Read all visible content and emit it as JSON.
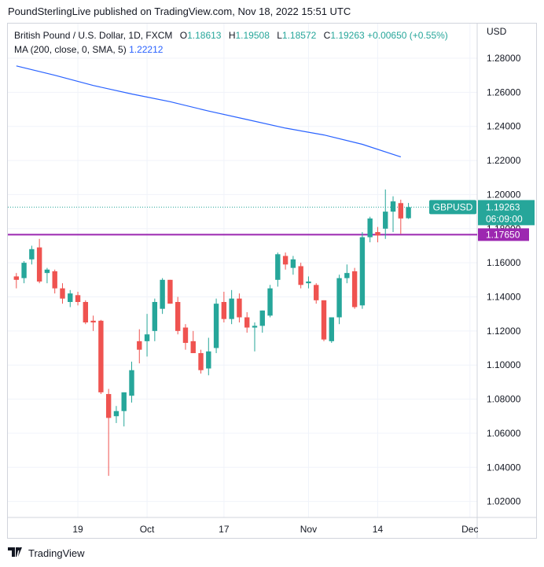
{
  "header": {
    "text": "PoundSterlingLive published on TradingView.com, Nov 18, 2022 15:51 UTC"
  },
  "legend": {
    "symbol": "British Pound / U.S. Dollar, 1D, FXCM",
    "o_label": "O",
    "o": "1.18613",
    "h_label": "H",
    "h": "1.19508",
    "l_label": "L",
    "l": "1.18572",
    "c_label": "C",
    "c": "1.19263",
    "change": "+0.00650 (+0.55%)",
    "ma_label": "MA (200, close, 0, SMA, 5)",
    "ma_value": "1.22212"
  },
  "currency": "USD",
  "price_tag": {
    "symbol": "GBPUSD",
    "price": "1.19263",
    "countdown": "06:09:00"
  },
  "level_tag": {
    "price": "1.17650"
  },
  "footer": {
    "brand": "TradingView"
  },
  "colors": {
    "up": "#26a69a",
    "down": "#ef5350",
    "ma": "#2962ff",
    "level": "#9c27b0",
    "price_line": "#26a69a"
  },
  "chart_data": {
    "type": "candlestick",
    "y_ticks": [
      "1.28000",
      "1.26000",
      "1.24000",
      "1.22000",
      "1.20000",
      "1.18000",
      "1.16000",
      "1.14000",
      "1.12000",
      "1.10000",
      "1.08000",
      "1.06000",
      "1.04000",
      "1.02000"
    ],
    "x_ticks": [
      {
        "label": "19",
        "index": 8
      },
      {
        "label": "Oct",
        "index": 17
      },
      {
        "label": "17",
        "index": 27
      },
      {
        "label": "Nov",
        "index": 38
      },
      {
        "label": "14",
        "index": 47
      },
      {
        "label": "Dec",
        "index": 59
      }
    ],
    "ylim": [
      1.0106,
      1.3003
    ],
    "horizontal_level": 1.1765,
    "last_price": 1.19263,
    "ma_line": [
      [
        0,
        1.2755
      ],
      [
        5,
        1.27
      ],
      [
        10,
        1.264
      ],
      [
        15,
        1.259
      ],
      [
        20,
        1.2545
      ],
      [
        25,
        1.249
      ],
      [
        30,
        1.244
      ],
      [
        35,
        1.239
      ],
      [
        40,
        1.235
      ],
      [
        45,
        1.2295
      ],
      [
        50,
        1.2221
      ]
    ],
    "candles": [
      [
        1.152,
        1.154,
        1.145,
        1.15
      ],
      [
        1.151,
        1.161,
        1.148,
        1.16
      ],
      [
        1.162,
        1.17,
        1.159,
        1.168
      ],
      [
        1.169,
        1.174,
        1.148,
        1.149
      ],
      [
        1.154,
        1.157,
        1.148,
        1.156
      ],
      [
        1.155,
        1.156,
        1.142,
        1.145
      ],
      [
        1.145,
        1.148,
        1.136,
        1.139
      ],
      [
        1.137,
        1.144,
        1.134,
        1.142
      ],
      [
        1.141,
        1.143,
        1.135,
        1.137
      ],
      [
        1.137,
        1.138,
        1.124,
        1.125
      ],
      [
        1.126,
        1.129,
        1.12,
        1.125
      ],
      [
        1.126,
        1.1265,
        1.083,
        1.084
      ],
      [
        1.083,
        1.086,
        1.035,
        1.069
      ],
      [
        1.07,
        1.076,
        1.066,
        1.073
      ],
      [
        1.073,
        1.084,
        1.064,
        1.084
      ],
      [
        1.082,
        1.102,
        1.078,
        1.097
      ],
      [
        1.114,
        1.121,
        1.101,
        1.109
      ],
      [
        1.114,
        1.13,
        1.105,
        1.118
      ],
      [
        1.12,
        1.139,
        1.114,
        1.137
      ],
      [
        1.133,
        1.151,
        1.13,
        1.15
      ],
      [
        1.15,
        1.15,
        1.136,
        1.136
      ],
      [
        1.137,
        1.14,
        1.118,
        1.12
      ],
      [
        1.122,
        1.124,
        1.109,
        1.113
      ],
      [
        1.114,
        1.12,
        1.107,
        1.107
      ],
      [
        1.107,
        1.109,
        1.095,
        1.097
      ],
      [
        1.098,
        1.116,
        1.094,
        1.108
      ],
      [
        1.11,
        1.139,
        1.107,
        1.136
      ],
      [
        1.137,
        1.143,
        1.125,
        1.127
      ],
      [
        1.127,
        1.144,
        1.124,
        1.139
      ],
      [
        1.139,
        1.142,
        1.125,
        1.128
      ],
      [
        1.128,
        1.131,
        1.119,
        1.122
      ],
      [
        1.122,
        1.125,
        1.108,
        1.123
      ],
      [
        1.123,
        1.132,
        1.119,
        1.132
      ],
      [
        1.129,
        1.147,
        1.128,
        1.145
      ],
      [
        1.15,
        1.166,
        1.146,
        1.165
      ],
      [
        1.164,
        1.166,
        1.156,
        1.159
      ],
      [
        1.157,
        1.164,
        1.153,
        1.162
      ],
      [
        1.158,
        1.16,
        1.145,
        1.147
      ],
      [
        1.148,
        1.152,
        1.145,
        1.149
      ],
      [
        1.147,
        1.148,
        1.136,
        1.138
      ],
      [
        1.138,
        1.138,
        1.114,
        1.115
      ],
      [
        1.114,
        1.128,
        1.113,
        1.128
      ],
      [
        1.128,
        1.153,
        1.124,
        1.151
      ],
      [
        1.151,
        1.159,
        1.148,
        1.154
      ],
      [
        1.155,
        1.157,
        1.133,
        1.134
      ],
      [
        1.135,
        1.178,
        1.133,
        1.175
      ],
      [
        1.175,
        1.187,
        1.172,
        1.186
      ],
      [
        1.178,
        1.181,
        1.172,
        1.176
      ],
      [
        1.18,
        1.203,
        1.174,
        1.19
      ],
      [
        1.19,
        1.199,
        1.178,
        1.196
      ],
      [
        1.195,
        1.197,
        1.177,
        1.186
      ],
      [
        1.18613,
        1.19508,
        1.18572,
        1.19263
      ]
    ]
  }
}
